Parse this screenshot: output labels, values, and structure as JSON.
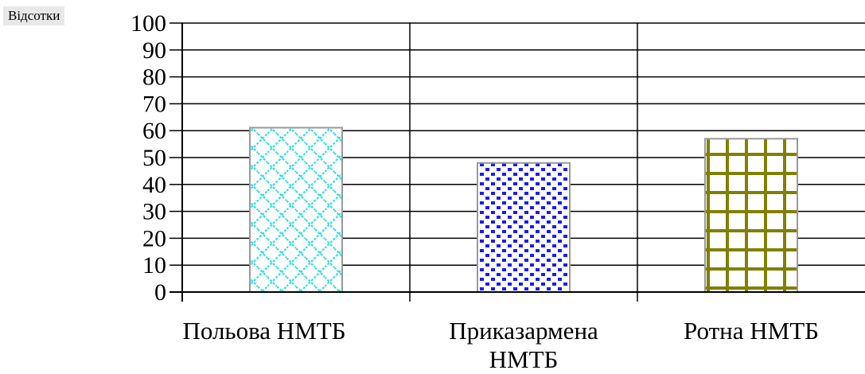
{
  "chart_data": {
    "type": "bar",
    "ylabel": "Відсотки",
    "xlabel": "",
    "title": "",
    "categories": [
      "Польова НМТБ",
      "Приказармена НМТБ",
      "Ротна НМТБ"
    ],
    "category_lines": [
      [
        "Польова НМТБ"
      ],
      [
        "Приказармена",
        "НМТБ"
      ],
      [
        "Ротна НМТБ"
      ]
    ],
    "values": [
      61.1,
      48.0,
      57.0
    ],
    "ylim": [
      0,
      100
    ],
    "yticks": [
      0,
      10,
      20,
      30,
      40,
      50,
      60,
      70,
      80,
      90,
      100
    ],
    "grid": true,
    "legend": "none",
    "bar_patterns": [
      "cyan-diagonal-chain",
      "blue-dots",
      "olive-grid"
    ],
    "colors": {
      "bar1": "#33e0e0",
      "bar2": "#1a1aff",
      "bar3": "#808000",
      "grid": "#000000",
      "bar_border": "#999999"
    }
  }
}
